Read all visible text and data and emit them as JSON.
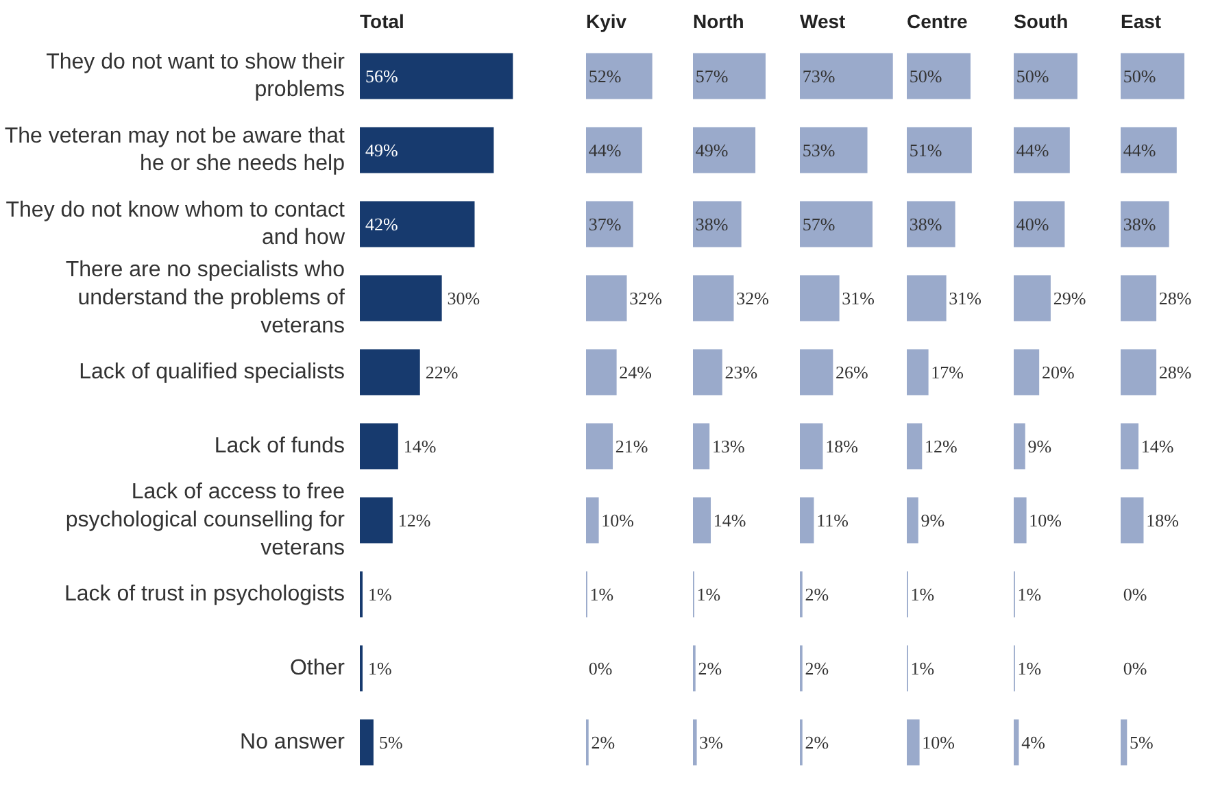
{
  "chart_data": [
    {
      "type": "bar",
      "orientation": "horizontal",
      "title": "Total",
      "tick_labels": "y",
      "color": "#173a6e",
      "categories": [
        "They do not want to show their problems",
        "The veteran may not be aware that he or she needs help",
        "They do not know whom to contact and how",
        "There are no specialists who understand the problems of veterans",
        "Lack of qualified specialists",
        "Lack of funds",
        "Lack of access to free psychological counselling for veterans",
        "Lack of trust in psychologists",
        "Other",
        "No answer"
      ],
      "values": [
        56,
        49,
        42,
        30,
        22,
        14,
        12,
        1,
        1,
        5
      ],
      "value_labels": [
        "56%",
        "49%",
        "42%",
        "30%",
        "22%",
        "14%",
        "12%",
        "1%",
        "1%",
        "5%"
      ]
    },
    {
      "type": "bar",
      "orientation": "horizontal",
      "title": "Kyiv",
      "tick_labels": false,
      "color": "#9aaacb",
      "categories": [
        "They do not want to show their problems",
        "The veteran may not be aware that he or she needs help",
        "They do not know whom to contact and how",
        "There are no specialists who understand the problems of veterans",
        "Lack of qualified specialists",
        "Lack of funds",
        "Lack of access to free psychological counselling for veterans",
        "Lack of trust in psychologists",
        "Other",
        "No answer"
      ],
      "values": [
        52,
        44,
        37,
        32,
        24,
        21,
        10,
        1,
        0,
        2
      ],
      "value_labels": [
        "52%",
        "44%",
        "37%",
        "32%",
        "24%",
        "21%",
        "10%",
        "1%",
        "0%",
        "2%"
      ]
    },
    {
      "type": "bar",
      "orientation": "horizontal",
      "title": "North",
      "tick_labels": false,
      "color": "#9aaacb",
      "categories": [
        "They do not want to show their problems",
        "The veteran may not be aware that he or she needs help",
        "They do not know whom to contact and how",
        "There are no specialists who understand the problems of veterans",
        "Lack of qualified specialists",
        "Lack of funds",
        "Lack of access to free psychological counselling for veterans",
        "Lack of trust in psychologists",
        "Other",
        "No answer"
      ],
      "values": [
        57,
        49,
        38,
        32,
        23,
        13,
        14,
        1,
        2,
        3
      ],
      "value_labels": [
        "57%",
        "49%",
        "38%",
        "32%",
        "23%",
        "13%",
        "14%",
        "1%",
        "2%",
        "3%"
      ]
    },
    {
      "type": "bar",
      "orientation": "horizontal",
      "title": "West",
      "tick_labels": false,
      "color": "#9aaacb",
      "categories": [
        "They do not want to show their problems",
        "The veteran may not be aware that he or she needs help",
        "They do not know whom to contact and how",
        "There are no specialists who understand the problems of veterans",
        "Lack of qualified specialists",
        "Lack of funds",
        "Lack of access to free psychological counselling for veterans",
        "Lack of trust in psychologists",
        "Other",
        "No answer"
      ],
      "values": [
        73,
        53,
        57,
        31,
        26,
        18,
        11,
        2,
        2,
        2
      ],
      "value_labels": [
        "73%",
        "53%",
        "57%",
        "31%",
        "26%",
        "18%",
        "11%",
        "2%",
        "2%",
        "2%"
      ]
    },
    {
      "type": "bar",
      "orientation": "horizontal",
      "title": "Centre",
      "tick_labels": false,
      "color": "#9aaacb",
      "categories": [
        "They do not want to show their problems",
        "The veteran may not be aware that he or she needs help",
        "They do not know whom to contact and how",
        "There are no specialists who understand the problems of veterans",
        "Lack of qualified specialists",
        "Lack of funds",
        "Lack of access to free psychological counselling for veterans",
        "Lack of trust in psychologists",
        "Other",
        "No answer"
      ],
      "values": [
        50,
        51,
        38,
        31,
        17,
        12,
        9,
        1,
        1,
        10
      ],
      "value_labels": [
        "50%",
        "51%",
        "38%",
        "31%",
        "17%",
        "12%",
        "9%",
        "1%",
        "1%",
        "10%"
      ]
    },
    {
      "type": "bar",
      "orientation": "horizontal",
      "title": "South",
      "tick_labels": false,
      "color": "#9aaacb",
      "categories": [
        "They do not want to show their problems",
        "The veteran may not be aware that he or she needs help",
        "They do not know whom to contact and how",
        "There are no specialists who understand the problems of veterans",
        "Lack of qualified specialists",
        "Lack of funds",
        "Lack of access to free psychological counselling for veterans",
        "Lack of trust in psychologists",
        "Other",
        "No answer"
      ],
      "values": [
        50,
        44,
        40,
        29,
        20,
        9,
        10,
        1,
        1,
        4
      ],
      "value_labels": [
        "50%",
        "44%",
        "40%",
        "29%",
        "20%",
        "9%",
        "10%",
        "1%",
        "1%",
        "4%"
      ]
    },
    {
      "type": "bar",
      "orientation": "horizontal",
      "title": "East",
      "tick_labels": false,
      "color": "#9aaacb",
      "categories": [
        "They do not want to show their problems",
        "The veteran may not be aware that he or she needs help",
        "They do not know whom to contact and how",
        "There are no specialists who understand the problems of veterans",
        "Lack of qualified specialists",
        "Lack of funds",
        "Lack of access to free psychological counselling for veterans",
        "Lack of trust in psychologists",
        "Other",
        "No answer"
      ],
      "values": [
        50,
        44,
        38,
        28,
        28,
        14,
        18,
        0,
        0,
        5
      ],
      "value_labels": [
        "50%",
        "44%",
        "38%",
        "28%",
        "28%",
        "14%",
        "18%",
        "0%",
        "0%",
        "5%"
      ]
    }
  ]
}
